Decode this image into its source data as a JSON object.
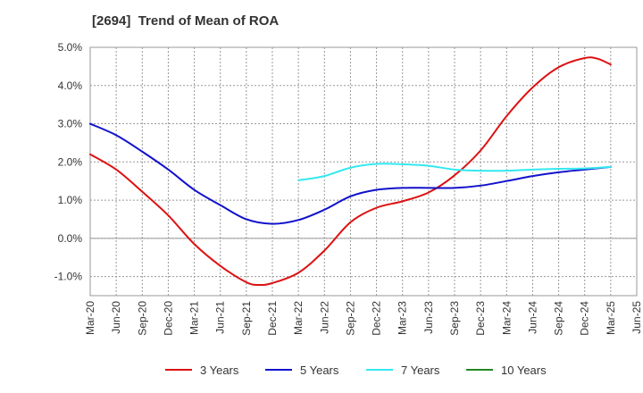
{
  "chart_data": {
    "type": "line",
    "title": "[2694]  Trend of Mean of ROA",
    "xlabel": "",
    "ylabel": "",
    "categories": [
      "Mar-20",
      "Jun-20",
      "Sep-20",
      "Dec-20",
      "Mar-21",
      "Jun-21",
      "Sep-21",
      "Dec-21",
      "Mar-22",
      "Jun-22",
      "Sep-22",
      "Dec-22",
      "Mar-23",
      "Jun-23",
      "Sep-23",
      "Dec-23",
      "Mar-24",
      "Jun-24",
      "Sep-24",
      "Dec-24",
      "Mar-25",
      "Jun-25"
    ],
    "y_ticks": [
      "5.0%",
      "4.0%",
      "3.0%",
      "2.0%",
      "1.0%",
      "0.0%",
      "-1.0%"
    ],
    "ylim": [
      -1.5,
      5.0
    ],
    "grid": true,
    "legend_position": "bottom",
    "series": [
      {
        "name": "3 Years",
        "color": "#dd1111",
        "x": [
          0,
          1,
          2,
          3,
          4,
          5,
          6,
          6.5,
          7,
          8,
          9,
          10,
          11,
          12,
          13,
          14,
          15,
          16,
          17,
          18,
          19,
          19.5,
          20
        ],
        "values": [
          2.2,
          1.8,
          1.22,
          0.6,
          -0.15,
          -0.72,
          -1.15,
          -1.22,
          -1.17,
          -0.9,
          -0.32,
          0.42,
          0.8,
          0.97,
          1.2,
          1.65,
          2.3,
          3.2,
          3.95,
          4.48,
          4.72,
          4.7,
          4.55
        ]
      },
      {
        "name": "5 Years",
        "color": "#1111cc",
        "x": [
          0,
          1,
          2,
          3,
          4,
          5,
          6,
          7,
          8,
          9,
          10,
          11,
          12,
          13,
          14,
          15,
          16,
          17,
          18,
          19,
          20
        ],
        "values": [
          3.0,
          2.7,
          2.27,
          1.8,
          1.27,
          0.87,
          0.5,
          0.38,
          0.48,
          0.75,
          1.1,
          1.27,
          1.32,
          1.32,
          1.32,
          1.38,
          1.5,
          1.63,
          1.73,
          1.8,
          1.87
        ]
      },
      {
        "name": "7 Years",
        "color": "#33e8f0",
        "x": [
          8,
          9,
          10,
          11,
          12,
          13,
          14,
          15,
          16,
          17,
          18,
          19,
          20
        ],
        "values": [
          1.52,
          1.63,
          1.85,
          1.95,
          1.94,
          1.9,
          1.8,
          1.77,
          1.77,
          1.8,
          1.82,
          1.83,
          1.87
        ]
      },
      {
        "name": "10 Years",
        "color": "#228822",
        "x": [],
        "values": []
      }
    ]
  }
}
